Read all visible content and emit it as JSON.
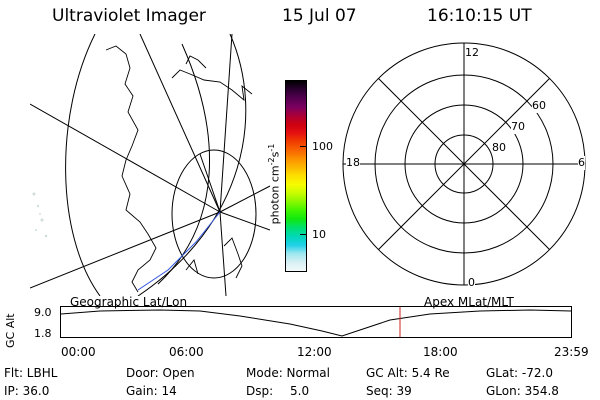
{
  "header": {
    "instrument": "Ultraviolet Imager",
    "date": "15 Jul 07",
    "time": "16:10:15 UT"
  },
  "left_panel": {
    "label": "Geographic Lat/Lon"
  },
  "colorbar": {
    "unit_label": "photon cm",
    "unit_exp1": "-2",
    "unit_s": "s",
    "unit_exp2": "-1",
    "ticks": [
      "100",
      "10"
    ],
    "colors": [
      "#000000",
      "#2a0030",
      "#550050",
      "#7a0060",
      "#aa0038",
      "#cc0010",
      "#e41010",
      "#f03c00",
      "#f86400",
      "#fc9000",
      "#fcb800",
      "#fce000",
      "#f8fc00",
      "#c8fc00",
      "#88f800",
      "#40f400",
      "#10e810",
      "#00e070",
      "#00d8b8",
      "#20d0e8",
      "#a0e8f0",
      "#d8f0f4",
      "#f2f8fa"
    ]
  },
  "right_panel": {
    "label": "Apex MLat/MLT",
    "mlt_labels": [
      "12",
      "18",
      "6",
      "0"
    ],
    "lat_labels": [
      "60",
      "70",
      "80"
    ]
  },
  "timeline": {
    "y_label": "GC Alt",
    "y_ticks": [
      "9.0",
      "1.8"
    ],
    "x_ticks": [
      "00:00",
      "06:00",
      "12:00",
      "18:00",
      "23:59"
    ],
    "marker_color": "#cc2222"
  },
  "status": {
    "flt": "Flt: LBHL",
    "ip": "IP: 36.0",
    "door": "Door: Open",
    "gain": "Gain: 14",
    "mode": "Mode: Normal",
    "dsp_label": "Dsp:",
    "dsp_value": "5.0",
    "gc_alt": "GC Alt: 5.4 Re",
    "seq": "Seq: 39",
    "glat": "GLat: -72.0",
    "glon": "GLon: 354.8"
  }
}
